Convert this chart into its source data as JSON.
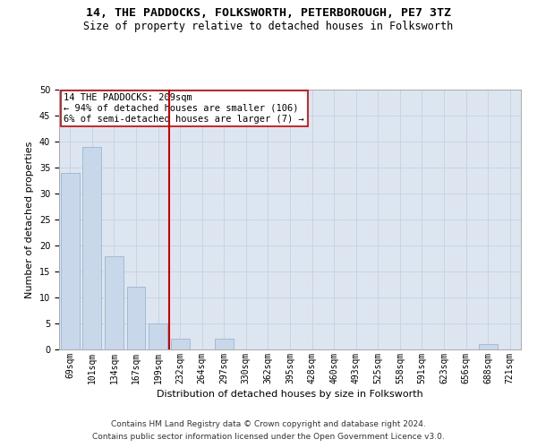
{
  "title1": "14, THE PADDOCKS, FOLKSWORTH, PETERBOROUGH, PE7 3TZ",
  "title2": "Size of property relative to detached houses in Folksworth",
  "xlabel": "Distribution of detached houses by size in Folksworth",
  "ylabel": "Number of detached properties",
  "categories": [
    "69sqm",
    "101sqm",
    "134sqm",
    "167sqm",
    "199sqm",
    "232sqm",
    "264sqm",
    "297sqm",
    "330sqm",
    "362sqm",
    "395sqm",
    "428sqm",
    "460sqm",
    "493sqm",
    "525sqm",
    "558sqm",
    "591sqm",
    "623sqm",
    "656sqm",
    "688sqm",
    "721sqm"
  ],
  "values": [
    34,
    39,
    18,
    12,
    5,
    2,
    0,
    2,
    0,
    0,
    0,
    0,
    0,
    0,
    0,
    0,
    0,
    0,
    0,
    1,
    0
  ],
  "bar_color": "#c8d8ea",
  "bar_edge_color": "#a0bcd4",
  "vline_x_index": 4,
  "vline_color": "#cc0000",
  "annotation_text": "14 THE PADDOCKS: 209sqm\n← 94% of detached houses are smaller (106)\n6% of semi-detached houses are larger (7) →",
  "annotation_box_color": "white",
  "annotation_box_edge_color": "#cc0000",
  "ylim": [
    0,
    50
  ],
  "yticks": [
    0,
    5,
    10,
    15,
    20,
    25,
    30,
    35,
    40,
    45,
    50
  ],
  "grid_color": "#c8d4e4",
  "bg_color": "#dde5f0",
  "footer_line1": "Contains HM Land Registry data © Crown copyright and database right 2024.",
  "footer_line2": "Contains public sector information licensed under the Open Government Licence v3.0.",
  "title1_fontsize": 9.5,
  "title2_fontsize": 8.5,
  "xlabel_fontsize": 8,
  "ylabel_fontsize": 8,
  "tick_fontsize": 7,
  "annotation_fontsize": 7.5,
  "footer_fontsize": 6.5
}
